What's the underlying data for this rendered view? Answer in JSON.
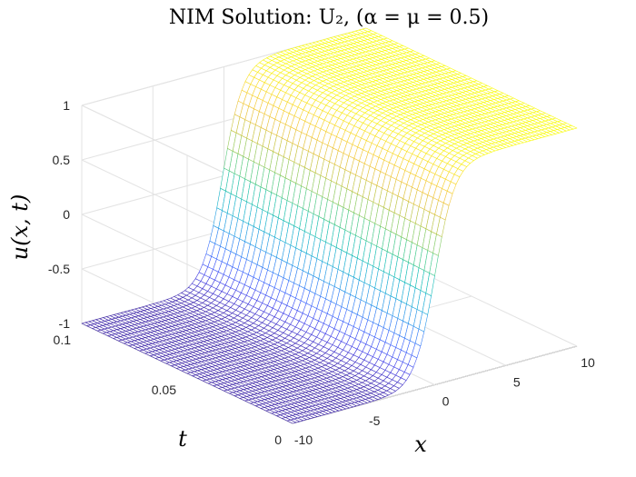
{
  "chart_data": {
    "type": "surface",
    "title": "NIM Solution: U₂, (α = μ = 0.5)",
    "xlabel": "x",
    "ylabel": "t",
    "zlabel": "u(x, t)",
    "xlim": [
      -10,
      10
    ],
    "ylim": [
      0,
      0.1
    ],
    "zlim": [
      -1,
      1
    ],
    "xticks": [
      "-10",
      "-5",
      "0",
      "5",
      "10"
    ],
    "yticks": [
      "0",
      "0.05",
      "0.1"
    ],
    "zticks": [
      "-1",
      "-0.5",
      "0",
      "0.5",
      "1"
    ],
    "surface": {
      "function": "u = tanh((x + t) / sqrt(2))",
      "x_range": [
        -10,
        10
      ],
      "t_range": [
        0,
        0.1
      ],
      "grid": [
        81,
        41
      ]
    },
    "colormap": "parula",
    "colormap_stops": [
      "#3e26a8",
      "#4746eb",
      "#3e6bfe",
      "#2b8fef",
      "#18a9d8",
      "#0fbcb8",
      "#3fc98c",
      "#89cb61",
      "#c8c33e",
      "#f1c23d",
      "#f9d92b",
      "#f9fb0e"
    ],
    "grid": true
  }
}
